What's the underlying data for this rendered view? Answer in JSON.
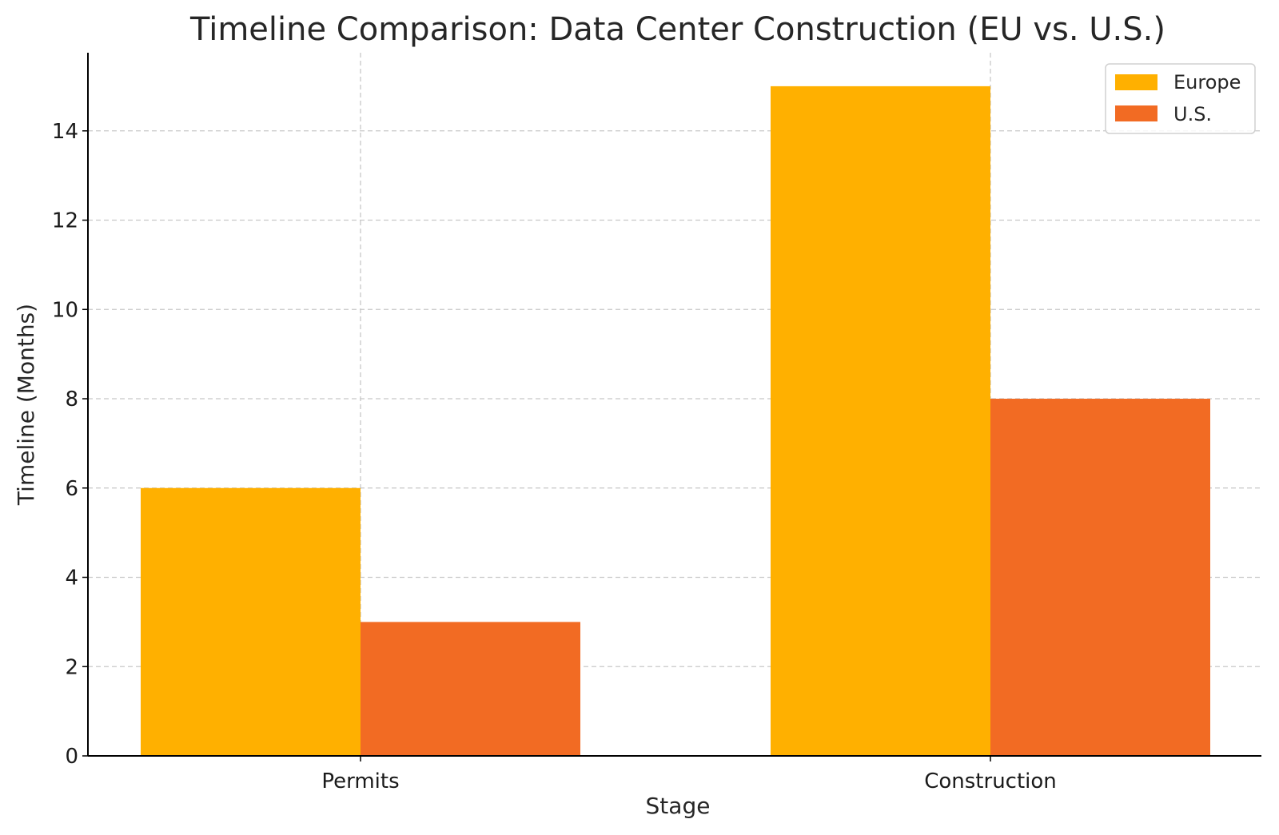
{
  "chart_data": {
    "type": "bar",
    "title": "Timeline Comparison: Data Center Construction (EU vs. U.S.)",
    "xlabel": "Stage",
    "ylabel": "Timeline (Months)",
    "categories": [
      "Permits",
      "Construction"
    ],
    "series": [
      {
        "name": "Europe",
        "values": [
          6,
          15
        ],
        "color": "#FFB000"
      },
      {
        "name": "U.S.",
        "values": [
          3,
          8
        ],
        "color": "#F26B23"
      }
    ],
    "ylim": [
      0,
      15.75
    ],
    "yticks": [
      0,
      2,
      4,
      6,
      8,
      10,
      12,
      14
    ],
    "grid": true,
    "legend_position": "top-right"
  }
}
